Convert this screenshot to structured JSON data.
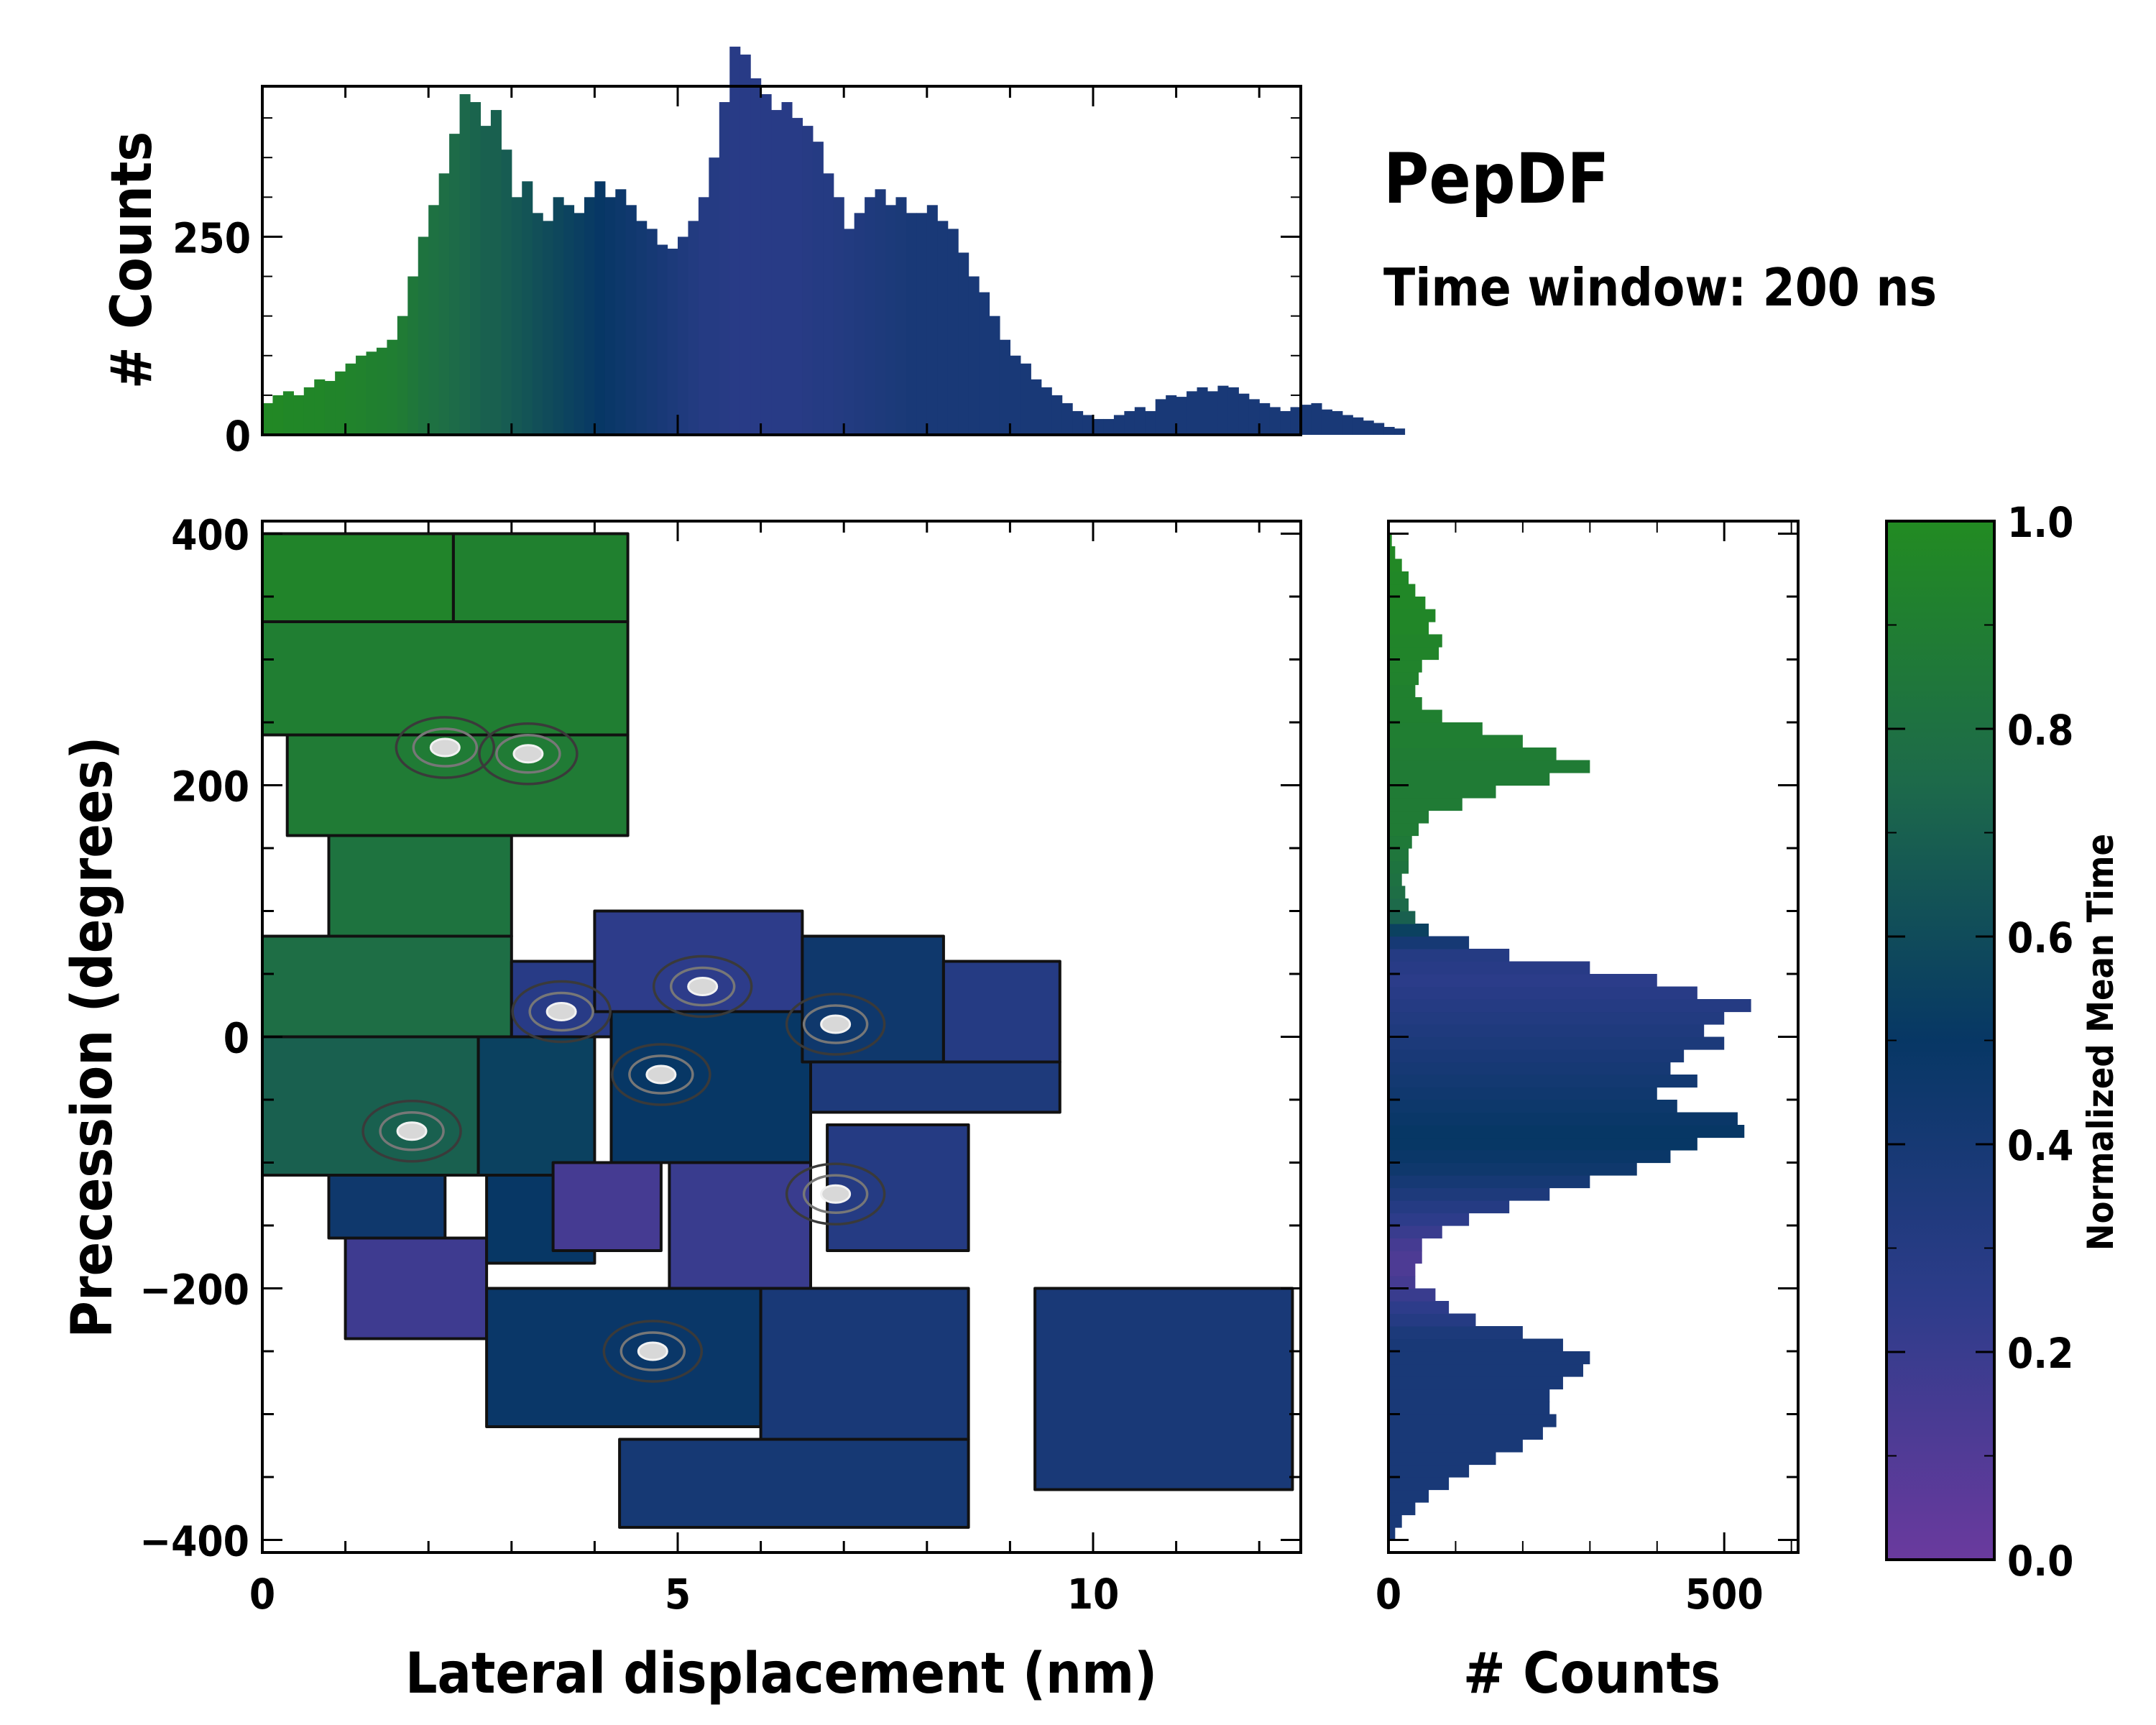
{
  "chart_data": [
    {
      "id": "top_histogram",
      "type": "bar",
      "title": "",
      "xlabel": "",
      "ylabel": "# Counts",
      "xlim": [
        0,
        12.5
      ],
      "ylim": [
        0,
        440
      ],
      "yticks": [
        0,
        250
      ],
      "bin_width": 0.125,
      "colored_by": "Normalized Mean Time",
      "values": [
        40,
        50,
        55,
        50,
        60,
        70,
        68,
        80,
        90,
        100,
        105,
        110,
        120,
        150,
        200,
        250,
        290,
        330,
        380,
        430,
        420,
        390,
        410,
        360,
        300,
        320,
        280,
        270,
        300,
        290,
        280,
        300,
        320,
        300,
        310,
        290,
        270,
        260,
        240,
        235,
        250,
        270,
        300,
        350,
        420,
        490,
        480,
        450,
        430,
        410,
        420,
        400,
        390,
        370,
        330,
        300,
        260,
        280,
        300,
        310,
        290,
        300,
        280,
        280,
        290,
        270,
        260,
        230,
        200,
        180,
        150,
        120,
        100,
        90,
        70,
        60,
        50,
        40,
        30,
        25,
        20,
        20,
        25,
        30,
        35,
        30,
        45,
        50,
        48,
        55,
        60,
        55,
        62,
        60,
        52,
        45,
        40,
        35,
        30,
        35,
        38,
        40,
        32,
        30,
        25,
        22,
        18,
        15,
        10,
        8
      ],
      "value_colors": [
        0.98,
        0.98,
        0.97,
        0.97,
        0.96,
        0.96,
        0.95,
        0.95,
        0.94,
        0.93,
        0.92,
        0.91,
        0.9,
        0.88,
        0.85,
        0.82,
        0.8,
        0.78,
        0.76,
        0.74,
        0.72,
        0.7,
        0.7,
        0.68,
        0.66,
        0.64,
        0.62,
        0.6,
        0.58,
        0.56,
        0.54,
        0.52,
        0.5,
        0.48,
        0.46,
        0.44,
        0.42,
        0.4,
        0.38,
        0.36,
        0.34,
        0.32,
        0.3,
        0.3,
        0.29,
        0.28,
        0.28,
        0.28,
        0.28,
        0.28,
        0.28,
        0.28,
        0.29,
        0.3,
        0.3,
        0.31,
        0.32,
        0.33,
        0.34,
        0.35,
        0.36,
        0.37,
        0.38,
        0.38,
        0.38,
        0.38,
        0.38,
        0.38,
        0.38,
        0.38,
        0.38,
        0.38,
        0.38,
        0.38,
        0.38,
        0.38,
        0.38,
        0.38,
        0.38,
        0.38,
        0.38,
        0.38,
        0.38,
        0.38,
        0.38,
        0.38,
        0.38,
        0.38,
        0.38,
        0.38,
        0.38,
        0.38,
        0.38,
        0.38,
        0.38,
        0.38,
        0.38,
        0.38,
        0.38,
        0.38,
        0.38,
        0.38,
        0.38,
        0.38,
        0.38,
        0.38,
        0.38,
        0.38,
        0.38,
        0.38
      ]
    },
    {
      "id": "main_heatmap",
      "type": "heatmap",
      "title": "",
      "xlabel": "Lateral displacement (nm)",
      "ylabel": "Precession (degrees)",
      "xlim": [
        0,
        12.5
      ],
      "ylim": [
        -410,
        410
      ],
      "xticks": [
        0,
        5,
        10
      ],
      "yticks": [
        -400,
        -200,
        0,
        200,
        400
      ],
      "colored_by": "Normalized Mean Time",
      "regions": [
        {
          "x": [
            0.0,
            2.3,
            2.3,
            0.0
          ],
          "y": [
            400,
            400,
            300,
            300
          ],
          "value": 0.95
        },
        {
          "x": [
            2.3,
            4.4,
            4.4,
            2.3
          ],
          "y": [
            400,
            400,
            330,
            330
          ],
          "value": 0.92
        },
        {
          "x": [
            0.0,
            4.4,
            4.4,
            0.0
          ],
          "y": [
            330,
            330,
            240,
            240
          ],
          "value": 0.9
        },
        {
          "x": [
            0.3,
            4.4,
            4.4,
            0.3
          ],
          "y": [
            240,
            240,
            160,
            160
          ],
          "value": 0.88
        },
        {
          "x": [
            0.8,
            3.0,
            3.0,
            0.8
          ],
          "y": [
            160,
            160,
            80,
            80
          ],
          "value": 0.82
        },
        {
          "x": [
            0.0,
            3.0,
            3.0,
            0.0
          ],
          "y": [
            80,
            80,
            0,
            0
          ],
          "value": 0.78
        },
        {
          "x": [
            0.0,
            2.6,
            2.6,
            0.0
          ],
          "y": [
            0,
            0,
            -110,
            -110
          ],
          "value": 0.7
        },
        {
          "x": [
            2.6,
            4.0,
            4.0,
            2.6
          ],
          "y": [
            0,
            0,
            -110,
            -110
          ],
          "value": 0.55
        },
        {
          "x": [
            3.0,
            4.2,
            4.2,
            3.0
          ],
          "y": [
            60,
            60,
            0,
            0
          ],
          "value": 0.28
        },
        {
          "x": [
            4.0,
            6.5,
            6.5,
            4.0
          ],
          "y": [
            100,
            100,
            20,
            20
          ],
          "value": 0.25
        },
        {
          "x": [
            4.2,
            6.6,
            6.6,
            4.2
          ],
          "y": [
            20,
            20,
            -100,
            -100
          ],
          "value": 0.5
        },
        {
          "x": [
            6.5,
            8.2,
            8.2,
            6.5
          ],
          "y": [
            80,
            80,
            -20,
            -20
          ],
          "value": 0.45
        },
        {
          "x": [
            6.6,
            9.6,
            9.6,
            6.6
          ],
          "y": [
            -20,
            -20,
            -60,
            -60
          ],
          "value": 0.35
        },
        {
          "x": [
            8.2,
            9.6,
            9.6,
            8.2
          ],
          "y": [
            60,
            60,
            -20,
            -20
          ],
          "value": 0.3
        },
        {
          "x": [
            6.8,
            8.5,
            8.5,
            6.8
          ],
          "y": [
            -70,
            -70,
            -170,
            -170
          ],
          "value": 0.3
        },
        {
          "x": [
            0.8,
            2.2,
            2.2,
            0.8
          ],
          "y": [
            -110,
            -110,
            -160,
            -160
          ],
          "value": 0.45
        },
        {
          "x": [
            1.0,
            2.7,
            2.7,
            1.0
          ],
          "y": [
            -160,
            -160,
            -240,
            -240
          ],
          "value": 0.18
        },
        {
          "x": [
            2.7,
            4.0,
            4.0,
            2.7
          ],
          "y": [
            -110,
            -110,
            -180,
            -180
          ],
          "value": 0.5
        },
        {
          "x": [
            3.5,
            4.8,
            4.8,
            3.5
          ],
          "y": [
            -100,
            -100,
            -170,
            -170
          ],
          "value": 0.15
        },
        {
          "x": [
            4.9,
            6.6,
            6.6,
            4.9
          ],
          "y": [
            -100,
            -100,
            -200,
            -200
          ],
          "value": 0.2
        },
        {
          "x": [
            2.7,
            6.0,
            6.0,
            2.7
          ],
          "y": [
            -200,
            -200,
            -310,
            -310
          ],
          "value": 0.48
        },
        {
          "x": [
            6.0,
            8.5,
            8.5,
            6.0
          ],
          "y": [
            -200,
            -200,
            -320,
            -320
          ],
          "value": 0.38
        },
        {
          "x": [
            4.3,
            8.5,
            8.5,
            4.3
          ],
          "y": [
            -320,
            -320,
            -390,
            -390
          ],
          "value": 0.4
        },
        {
          "x": [
            9.3,
            12.4,
            12.4,
            9.3
          ],
          "y": [
            -200,
            -200,
            -360,
            -360
          ],
          "value": 0.38
        }
      ],
      "density_peaks": [
        {
          "x": 2.2,
          "y": 230
        },
        {
          "x": 3.2,
          "y": 225
        },
        {
          "x": 1.8,
          "y": -75
        },
        {
          "x": 3.6,
          "y": 20
        },
        {
          "x": 5.3,
          "y": 40
        },
        {
          "x": 6.9,
          "y": 10
        },
        {
          "x": 4.8,
          "y": -30
        },
        {
          "x": 4.7,
          "y": -250
        },
        {
          "x": 6.9,
          "y": -125
        }
      ]
    },
    {
      "id": "right_histogram",
      "type": "bar",
      "orientation": "horizontal",
      "title": "",
      "xlabel": "# Counts",
      "ylabel": "",
      "xlim": [
        0,
        610
      ],
      "ylim": [
        -410,
        410
      ],
      "xticks": [
        0,
        500
      ],
      "bin_width": 10,
      "colored_by": "Normalized Mean Time",
      "bins_y": [
        -400,
        -390,
        -380,
        -370,
        -360,
        -350,
        -340,
        -330,
        -320,
        -310,
        -300,
        -290,
        -280,
        -270,
        -260,
        -250,
        -240,
        -230,
        -220,
        -210,
        -200,
        -190,
        -180,
        -170,
        -160,
        -150,
        -140,
        -130,
        -120,
        -110,
        -100,
        -90,
        -80,
        -70,
        -60,
        -50,
        -40,
        -30,
        -20,
        -10,
        0,
        10,
        20,
        30,
        40,
        50,
        60,
        70,
        80,
        90,
        100,
        110,
        120,
        130,
        140,
        150,
        160,
        170,
        180,
        190,
        200,
        210,
        220,
        230,
        240,
        250,
        260,
        270,
        280,
        290,
        300,
        310,
        320,
        330,
        340,
        350,
        360,
        370,
        380,
        390
      ],
      "values": [
        10,
        20,
        40,
        60,
        90,
        120,
        160,
        200,
        230,
        250,
        240,
        240,
        260,
        290,
        300,
        260,
        200,
        130,
        90,
        70,
        40,
        40,
        50,
        50,
        80,
        120,
        180,
        240,
        300,
        370,
        420,
        460,
        530,
        520,
        430,
        400,
        460,
        420,
        440,
        500,
        470,
        500,
        540,
        460,
        400,
        300,
        180,
        120,
        60,
        40,
        30,
        25,
        20,
        30,
        30,
        35,
        45,
        60,
        110,
        160,
        240,
        300,
        250,
        200,
        140,
        80,
        50,
        40,
        45,
        50,
        75,
        80,
        60,
        70,
        55,
        40,
        30,
        20,
        10,
        5
      ],
      "value_colors": [
        0.38,
        0.38,
        0.38,
        0.38,
        0.38,
        0.38,
        0.38,
        0.38,
        0.38,
        0.38,
        0.38,
        0.38,
        0.38,
        0.38,
        0.38,
        0.38,
        0.36,
        0.3,
        0.25,
        0.2,
        0.15,
        0.12,
        0.12,
        0.15,
        0.2,
        0.25,
        0.3,
        0.35,
        0.4,
        0.45,
        0.48,
        0.5,
        0.5,
        0.48,
        0.46,
        0.44,
        0.42,
        0.4,
        0.38,
        0.36,
        0.34,
        0.32,
        0.3,
        0.28,
        0.26,
        0.28,
        0.3,
        0.4,
        0.55,
        0.7,
        0.75,
        0.78,
        0.8,
        0.82,
        0.84,
        0.86,
        0.88,
        0.88,
        0.88,
        0.88,
        0.88,
        0.88,
        0.89,
        0.9,
        0.9,
        0.91,
        0.92,
        0.92,
        0.93,
        0.94,
        0.95,
        0.95,
        0.96,
        0.96,
        0.97,
        0.97,
        0.97,
        0.98,
        0.98,
        0.98
      ]
    },
    {
      "id": "colorbar",
      "type": "colorbar",
      "label": "Normalized Mean Time",
      "range": [
        0.0,
        1.0
      ],
      "ticks": [
        "0.0",
        "0.2",
        "0.4",
        "0.6",
        "0.8",
        "1.0"
      ],
      "colormap_stops": [
        "#6a3a9e",
        "#2d3c8a",
        "#073765",
        "#1d6a4a",
        "#228b22"
      ]
    }
  ],
  "annotation": {
    "title": "PepDF",
    "subtitle": "Time window: 200 ns"
  }
}
